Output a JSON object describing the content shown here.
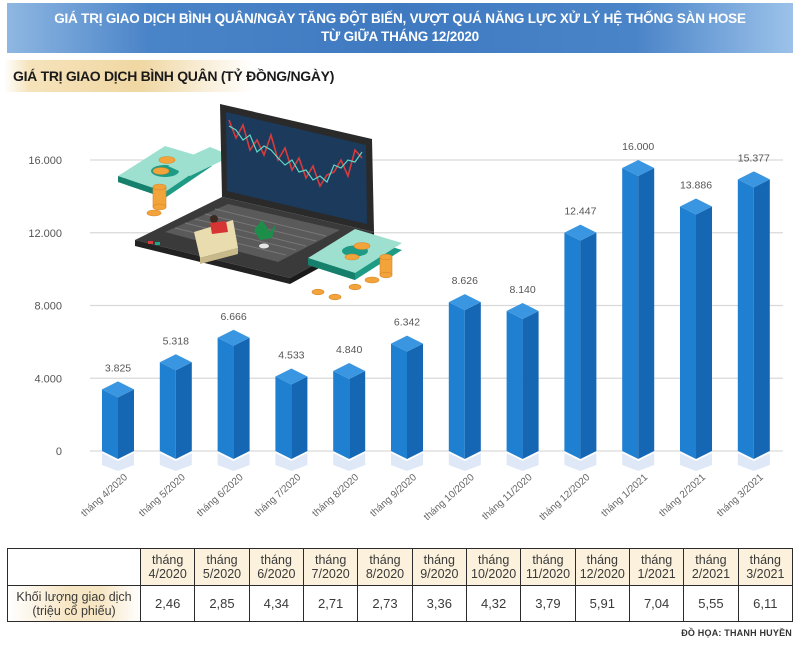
{
  "header": {
    "title_line1": "GIÁ TRỊ GIAO DỊCH BÌNH QUÂN/NGÀY TĂNG ĐỘT BIẾN, VƯỢT QUÁ NĂNG LỰC XỬ LÝ HỆ THỐNG SÀN HOSE",
    "title_line2": "TỪ GIỮA THÁNG 12/2020"
  },
  "subtitle": "GIÁ TRỊ GIAO DỊCH BÌNH QUÂN (TỶ ĐỒNG/NGÀY)",
  "colors": {
    "bar_front": "#1f7fd0",
    "bar_side": "#1566b3",
    "bar_top": "#3a96e0",
    "header_blue": "#3f79c0",
    "table_header_bg": "#fbf1dc"
  },
  "illustration": {
    "icon": "laptop-stock-chart-with-money-icon"
  },
  "chart_data": {
    "type": "bar",
    "title": "GIÁ TRỊ GIAO DỊCH BÌNH QUÂN (TỶ ĐỒNG/NGÀY)",
    "xlabel": "",
    "ylabel": "",
    "ylim": [
      0,
      16000
    ],
    "yticks": [
      0,
      4000,
      8000,
      12000,
      16000
    ],
    "ytick_labels": [
      "0",
      "4.000",
      "8.000",
      "12.000",
      "16.000"
    ],
    "grid": true,
    "categories": [
      "tháng 4/2020",
      "tháng 5/2020",
      "tháng 6/2020",
      "tháng 7/2020",
      "tháng 8/2020",
      "tháng 9/2020",
      "tháng 10/2020",
      "tháng 11/2020",
      "tháng 12/2020",
      "tháng 1/2021",
      "tháng 2/2021",
      "tháng 3/2021"
    ],
    "values": [
      3825,
      5318,
      6666,
      4533,
      4840,
      6342,
      8626,
      8140,
      12447,
      16000,
      13886,
      15377
    ],
    "value_labels": [
      "3.825",
      "5.318",
      "6.666",
      "4.533",
      "4.840",
      "6.342",
      "8.626",
      "8.140",
      "12.447",
      "16.000",
      "13.886",
      "15.377"
    ]
  },
  "table": {
    "row_label": "Khối lượng giao dịch (triệu cổ phiếu)",
    "row_label_line1": "Khối lượng giao dịch",
    "row_label_line2": "(triệu cổ phiếu)",
    "columns": [
      {
        "line1": "tháng",
        "line2": "4/2020",
        "value": "2,46"
      },
      {
        "line1": "tháng",
        "line2": "5/2020",
        "value": "2,85"
      },
      {
        "line1": "tháng",
        "line2": "6/2020",
        "value": "4,34"
      },
      {
        "line1": "tháng",
        "line2": "7/2020",
        "value": "2,71"
      },
      {
        "line1": "tháng",
        "line2": "8/2020",
        "value": "2,73"
      },
      {
        "line1": "tháng",
        "line2": "9/2020",
        "value": "3,36"
      },
      {
        "line1": "tháng",
        "line2": "10/2020",
        "value": "4,32"
      },
      {
        "line1": "tháng",
        "line2": "11/2020",
        "value": "3,79"
      },
      {
        "line1": "tháng",
        "line2": "12/2020",
        "value": "5,91"
      },
      {
        "line1": "tháng",
        "line2": "1/2021",
        "value": "7,04"
      },
      {
        "line1": "tháng",
        "line2": "2/2021",
        "value": "5,55"
      },
      {
        "line1": "tháng",
        "line2": "3/2021",
        "value": "6,11"
      }
    ]
  },
  "credit": "ĐỒ HỌA: THANH HUYỀN"
}
